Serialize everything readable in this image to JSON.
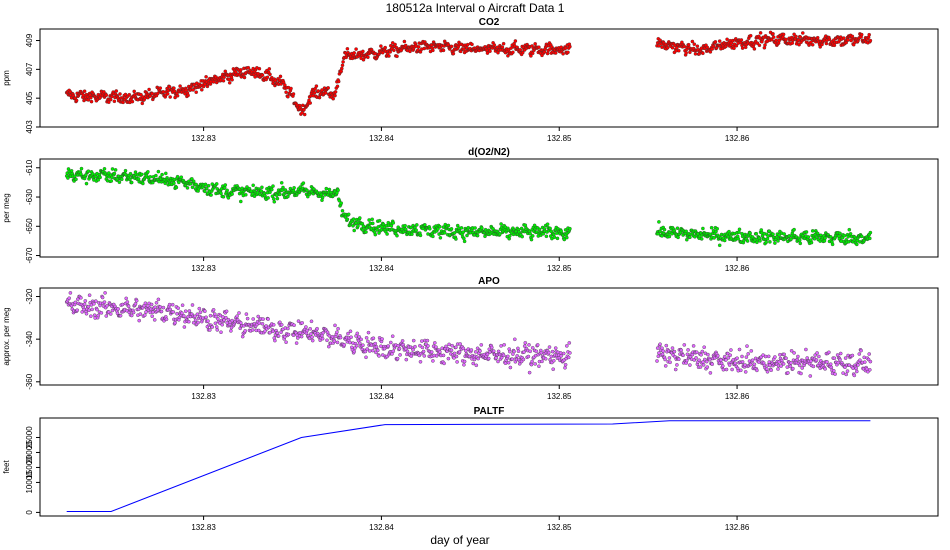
{
  "figure": {
    "title": "180512a   Interval o Aircraft Data 1",
    "xlabel": "day of year"
  },
  "chart_data": [
    {
      "type": "scatter",
      "title": "CO2",
      "ylabel": "ppm",
      "xlim": [
        132.8208,
        132.8713
      ],
      "ylim": [
        403,
        409.8
      ],
      "xticks": [
        132.83,
        132.84,
        132.85,
        132.86
      ],
      "xtick_labels": [
        "132.83",
        "132.84",
        "132.85",
        "132.86"
      ],
      "yticks": [
        403,
        405,
        407,
        409
      ],
      "ytick_labels": [
        "403",
        "405",
        "407",
        "409"
      ],
      "marker_color": "#ff0000",
      "trend": [
        [
          132.8223,
          405.2
        ],
        [
          132.826,
          405.0
        ],
        [
          132.829,
          405.6
        ],
        [
          132.8315,
          406.6
        ],
        [
          132.8325,
          406.9
        ],
        [
          132.8335,
          406.6
        ],
        [
          132.8345,
          405.9
        ],
        [
          132.8356,
          404.0
        ],
        [
          132.836,
          405.2
        ],
        [
          132.8368,
          405.5
        ],
        [
          132.8374,
          405.2
        ],
        [
          132.8378,
          407.6
        ],
        [
          132.838,
          407.9
        ],
        [
          132.8395,
          408.1
        ],
        [
          132.841,
          408.4
        ],
        [
          132.8425,
          408.6
        ],
        [
          132.845,
          408.4
        ],
        [
          132.8475,
          408.4
        ],
        [
          132.8505,
          408.4
        ],
        [
          132.8555,
          408.8
        ],
        [
          132.858,
          408.3
        ],
        [
          132.8595,
          408.8
        ],
        [
          132.862,
          409.1
        ],
        [
          132.8655,
          409.0
        ],
        [
          132.8675,
          409.1
        ]
      ],
      "segments": [
        [
          132.8223,
          132.8506
        ],
        [
          132.8555,
          132.8675
        ]
      ],
      "jitter": 0.35
    },
    {
      "type": "scatter",
      "title": "d(O2/N2)",
      "ylabel": "per meg",
      "xlim": [
        132.8208,
        132.8713
      ],
      "ylim": [
        -671,
        -604
      ],
      "xticks": [
        132.83,
        132.84,
        132.85,
        132.86
      ],
      "xtick_labels": [
        "132.83",
        "132.84",
        "132.85",
        "132.86"
      ],
      "yticks": [
        -610,
        -630,
        -650,
        -670
      ],
      "ytick_labels": [
        "-610",
        "-630",
        "-650",
        "-670"
      ],
      "marker_color": "#00ee00",
      "trend": [
        [
          132.8223,
          -615
        ],
        [
          132.826,
          -616
        ],
        [
          132.829,
          -620
        ],
        [
          132.831,
          -626
        ],
        [
          132.8335,
          -627
        ],
        [
          132.8355,
          -626
        ],
        [
          132.8375,
          -628
        ],
        [
          132.838,
          -646
        ],
        [
          132.84,
          -651
        ],
        [
          132.845,
          -654
        ],
        [
          132.8505,
          -654
        ],
        [
          132.8555,
          -654
        ],
        [
          132.86,
          -657
        ],
        [
          132.8675,
          -658
        ]
      ],
      "segments": [
        [
          132.8223,
          132.8506
        ],
        [
          132.8555,
          132.8675
        ]
      ],
      "jitter": 4
    },
    {
      "type": "scatter",
      "title": "APO",
      "ylabel": "approx. per meg",
      "xlim": [
        132.8208,
        132.8713
      ],
      "ylim": [
        -361.5,
        -316
      ],
      "xticks": [
        132.83,
        132.84,
        132.85,
        132.86
      ],
      "xtick_labels": [
        "132.83",
        "132.84",
        "132.85",
        "132.86"
      ],
      "yticks": [
        -320,
        -340,
        -360
      ],
      "ytick_labels": [
        "-320",
        "-340",
        "-360"
      ],
      "marker_color": "#e066ff",
      "trend": [
        [
          132.8223,
          -324
        ],
        [
          132.828,
          -327
        ],
        [
          132.832,
          -333
        ],
        [
          132.836,
          -337
        ],
        [
          132.84,
          -344
        ],
        [
          132.845,
          -347
        ],
        [
          132.8505,
          -348
        ],
        [
          132.8555,
          -347
        ],
        [
          132.86,
          -351
        ],
        [
          132.8675,
          -351
        ]
      ],
      "segments": [
        [
          132.8223,
          132.8506
        ],
        [
          132.8555,
          132.8675
        ]
      ],
      "jitter": 4.5
    },
    {
      "type": "line",
      "title": "PALTF",
      "ylabel": "feet",
      "xlim": [
        132.8208,
        132.8713
      ],
      "ylim": [
        -1200,
        31500
      ],
      "xticks": [
        132.83,
        132.84,
        132.85,
        132.86
      ],
      "xtick_labels": [
        "132.83",
        "132.84",
        "132.85",
        "132.86"
      ],
      "yticks": [
        0,
        10000,
        15000,
        20000,
        25000
      ],
      "ytick_labels": [
        "0",
        "10000",
        "15000",
        "20000",
        "25000"
      ],
      "line_color": "#0000ff",
      "x": [
        132.8223,
        132.8248,
        132.8355,
        132.8402,
        132.853,
        132.8562,
        132.8675
      ],
      "y": [
        300,
        300,
        25000,
        29300,
        29500,
        30600,
        30600
      ]
    }
  ]
}
